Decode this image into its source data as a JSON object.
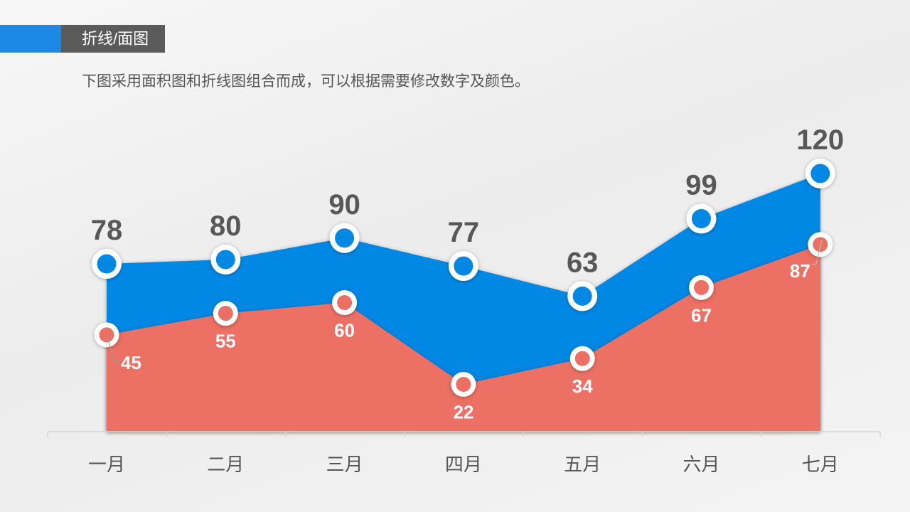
{
  "header": {
    "title": "折线/面图",
    "subtitle": "下图采用面积图和折线图组合而成，可以根据需要修改数字及颜色。"
  },
  "colors": {
    "accent": "#1e88e5",
    "series_top": "#0088e4",
    "series_bottom": "#ec6f64",
    "title_box": "#5a5a5a"
  },
  "chart_data": {
    "type": "area",
    "categories": [
      "一月",
      "二月",
      "三月",
      "四月",
      "五月",
      "六月",
      "七月"
    ],
    "series": [
      {
        "values": [
          78,
          80,
          90,
          77,
          63,
          99,
          120
        ],
        "color": "#0088e4"
      },
      {
        "values": [
          45,
          55,
          60,
          22,
          34,
          67,
          87
        ],
        "color": "#ec6f64"
      }
    ],
    "ylim": [
      0,
      120
    ],
    "grid": false,
    "legend": "none",
    "data_labels": true
  }
}
